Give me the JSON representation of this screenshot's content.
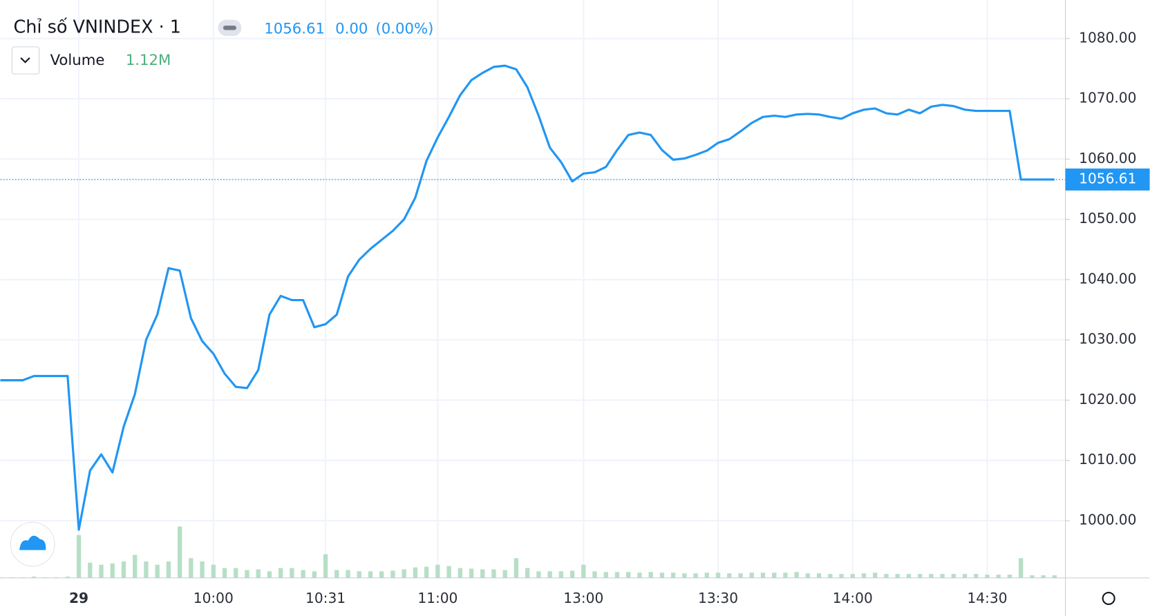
{
  "chart_data": {
    "type": "line",
    "title": "Chỉ số VNINDEX · 1",
    "last_value": 1056.61,
    "change": "0.00",
    "change_pct": "(0.00%)",
    "volume_label": "Volume",
    "volume_value": "1.12M",
    "categories": [
      null,
      null,
      null,
      null,
      null,
      null,
      null,
      "29",
      null,
      null,
      null,
      null,
      null,
      null,
      null,
      null,
      null,
      null,
      null,
      "10:00",
      null,
      null,
      null,
      null,
      null,
      null,
      null,
      null,
      null,
      "10:31",
      null,
      null,
      null,
      null,
      null,
      null,
      null,
      null,
      null,
      "11:00",
      null,
      null,
      null,
      null,
      null,
      null,
      null,
      null,
      null,
      null,
      null,
      null,
      "13:00",
      null,
      null,
      null,
      null,
      null,
      null,
      null,
      null,
      null,
      null,
      null,
      "13:30",
      null,
      null,
      null,
      null,
      null,
      null,
      null,
      null,
      null,
      null,
      null,
      "14:00",
      null,
      null,
      null,
      null,
      null,
      null,
      null,
      null,
      null,
      null,
      null,
      "14:30",
      null,
      null,
      null,
      null,
      null,
      null
    ],
    "series": [
      {
        "name": "VNINDEX",
        "color": "#2196f3",
        "values": [
          1023.3,
          1023.3,
          1023.3,
          1024.0,
          1024.0,
          1024.0,
          1024.0,
          998.5,
          1008.3,
          1011,
          1008,
          1015.6,
          1021,
          1030,
          1034.2,
          1041.9,
          1041.5,
          1033.6,
          1029.8,
          1027.7,
          1024.4,
          1022.2,
          1022,
          1025,
          1034.2,
          1037.3,
          1036.6,
          1036.6,
          1032.1,
          1032.6,
          1034.2,
          1040.5,
          1043.3,
          1045.1,
          1046.6,
          1048.1,
          1050,
          1053.6,
          1059.7,
          1063.6,
          1067,
          1070.6,
          1073.1,
          1074.3,
          1075.3,
          1075.5,
          1074.9,
          1071.9,
          1067.2,
          1061.9,
          1059.5,
          1056.3,
          1057.6,
          1057.8,
          1058.7,
          1061.5,
          1064,
          1064.4,
          1064,
          1061.5,
          1059.9,
          1060.1,
          1060.7,
          1061.4,
          1062.7,
          1063.3,
          1064.6,
          1066,
          1067,
          1067.2,
          1067,
          1067.4,
          1067.5,
          1067.4,
          1067,
          1066.7,
          1067.6,
          1068.2,
          1068.4,
          1067.6,
          1067.4,
          1068.2,
          1067.6,
          1068.7,
          1069,
          1068.8,
          1068.2,
          1068,
          1068,
          1068,
          1068,
          1056.61,
          1056.61,
          1056.61,
          1056.61
        ]
      },
      {
        "name": "Volume",
        "color": "#b7dfc6",
        "axis": "y2",
        "values": [
          0.1,
          0.1,
          0.1,
          0.2,
          0.1,
          0.1,
          0.2,
          6.5,
          2.3,
          2,
          2.2,
          2.5,
          3.5,
          2.5,
          2,
          2.5,
          7.8,
          3,
          2.5,
          2,
          1.5,
          1.5,
          1.2,
          1.3,
          1,
          1.5,
          1.5,
          1.2,
          1,
          3.6,
          1.2,
          1.2,
          1,
          1,
          1,
          1.1,
          1.3,
          1.6,
          1.7,
          2,
          1.8,
          1.5,
          1.4,
          1.3,
          1.3,
          1.2,
          3,
          1.5,
          1,
          1,
          1,
          1.1,
          2,
          1,
          0.9,
          0.9,
          0.9,
          0.8,
          0.9,
          0.8,
          0.8,
          0.7,
          0.7,
          0.8,
          0.8,
          0.7,
          0.7,
          0.8,
          0.8,
          0.8,
          0.8,
          0.9,
          0.7,
          0.7,
          0.6,
          0.6,
          0.6,
          0.7,
          0.8,
          0.6,
          0.6,
          0.6,
          0.6,
          0.6,
          0.6,
          0.6,
          0.6,
          0.6,
          0.5,
          0.5,
          0.5,
          3,
          0.4,
          0.4,
          0.4
        ]
      }
    ],
    "ylim": [
      990.5,
      1086.4
    ],
    "yticks": [
      {
        "value": 1000,
        "label": "1000.00"
      },
      {
        "value": 1010,
        "label": "1010.00"
      },
      {
        "value": 1020,
        "label": "1020.00"
      },
      {
        "value": 1030,
        "label": "1030.00"
      },
      {
        "value": 1040,
        "label": "1040.00"
      },
      {
        "value": 1050,
        "label": "1050.00"
      },
      {
        "value": 1060,
        "label": "1060.00"
      },
      {
        "value": 1070,
        "label": "1070.00"
      },
      {
        "value": 1080,
        "label": "1080.00"
      }
    ],
    "y2lim": [
      0,
      10
    ],
    "grid": true
  }
}
